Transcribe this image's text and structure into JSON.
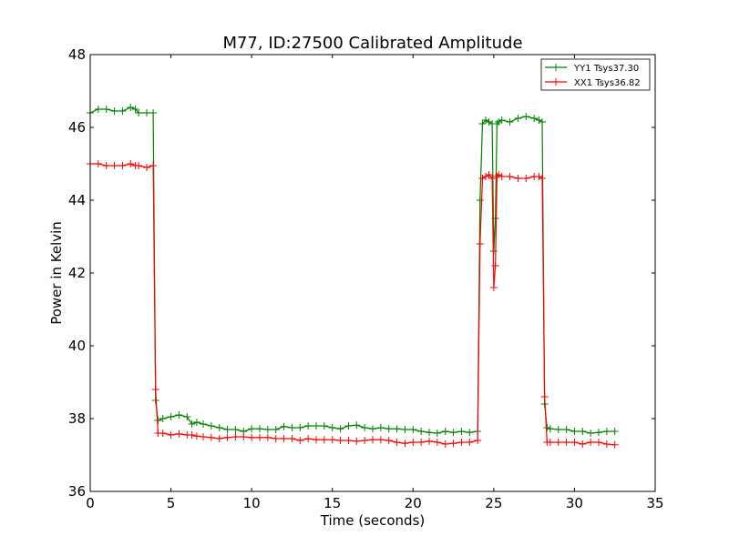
{
  "chart_data": {
    "type": "line",
    "title": "M77, ID:27500 Calibrated Amplitude",
    "xlabel": "Time (seconds)",
    "ylabel": "Power in Kelvin",
    "xlim": [
      0,
      35
    ],
    "ylim": [
      36,
      48
    ],
    "xticks": [
      0,
      5,
      10,
      15,
      20,
      25,
      30,
      35
    ],
    "yticks": [
      36,
      38,
      40,
      42,
      44,
      46,
      48
    ],
    "xtick_labels": [
      "0",
      "5",
      "10",
      "15",
      "20",
      "25",
      "30",
      "35"
    ],
    "ytick_labels": [
      "36",
      "38",
      "40",
      "42",
      "44",
      "46",
      "48"
    ],
    "grid": false,
    "legend_position": "top-right",
    "marker": "+",
    "series": [
      {
        "name": "YY1 Tsys37.30",
        "color": "#008000",
        "x": [
          0.0,
          0.5,
          1.0,
          1.5,
          2.0,
          2.5,
          2.8,
          3.0,
          3.5,
          3.9,
          4.05,
          4.2,
          4.5,
          5.0,
          5.5,
          6.0,
          6.3,
          6.6,
          7.0,
          7.5,
          8.0,
          8.5,
          9.0,
          9.5,
          10.0,
          10.5,
          11.0,
          11.5,
          12.0,
          12.5,
          13.0,
          13.5,
          14.0,
          14.5,
          15.0,
          15.5,
          16.0,
          16.5,
          17.0,
          17.5,
          18.0,
          18.5,
          19.0,
          19.5,
          20.0,
          20.5,
          21.0,
          21.5,
          22.0,
          22.5,
          23.0,
          23.5,
          24.0,
          24.15,
          24.3,
          24.5,
          24.7,
          24.9,
          25.0,
          25.1,
          25.2,
          25.3,
          25.5,
          26.0,
          26.5,
          27.0,
          27.5,
          27.8,
          28.0,
          28.15,
          28.3,
          28.5,
          29.0,
          29.5,
          30.0,
          30.5,
          31.0,
          31.5,
          32.0,
          32.5
        ],
        "values": [
          46.4,
          46.5,
          46.5,
          46.45,
          46.45,
          46.55,
          46.5,
          46.4,
          46.4,
          46.4,
          38.5,
          37.95,
          38.0,
          38.05,
          38.1,
          38.05,
          37.85,
          37.9,
          37.85,
          37.8,
          37.75,
          37.7,
          37.7,
          37.65,
          37.72,
          37.72,
          37.7,
          37.7,
          37.78,
          37.75,
          37.75,
          37.8,
          37.8,
          37.8,
          37.75,
          37.72,
          37.8,
          37.82,
          37.75,
          37.72,
          37.75,
          37.72,
          37.72,
          37.7,
          37.7,
          37.65,
          37.62,
          37.6,
          37.65,
          37.62,
          37.65,
          37.62,
          37.65,
          44.0,
          46.1,
          46.2,
          46.15,
          46.1,
          42.6,
          43.5,
          46.1,
          46.15,
          46.2,
          46.15,
          46.25,
          46.3,
          46.25,
          46.2,
          46.15,
          38.4,
          37.75,
          37.72,
          37.7,
          37.7,
          37.65,
          37.65,
          37.6,
          37.62,
          37.65,
          37.65
        ]
      },
      {
        "name": "XX1 Tsys36.82",
        "color": "#ff0000",
        "x": [
          0.0,
          0.5,
          1.0,
          1.5,
          2.0,
          2.5,
          2.8,
          3.0,
          3.5,
          3.9,
          4.05,
          4.2,
          4.5,
          5.0,
          5.5,
          6.0,
          6.3,
          6.6,
          7.0,
          7.5,
          8.0,
          8.5,
          9.0,
          9.5,
          10.0,
          10.5,
          11.0,
          11.5,
          12.0,
          12.5,
          13.0,
          13.5,
          14.0,
          14.5,
          15.0,
          15.5,
          16.0,
          16.5,
          17.0,
          17.5,
          18.0,
          18.5,
          19.0,
          19.5,
          20.0,
          20.5,
          21.0,
          21.5,
          22.0,
          22.5,
          23.0,
          23.5,
          24.0,
          24.15,
          24.3,
          24.5,
          24.7,
          24.9,
          25.0,
          25.1,
          25.2,
          25.3,
          25.5,
          26.0,
          26.5,
          27.0,
          27.5,
          27.8,
          28.0,
          28.15,
          28.3,
          28.5,
          29.0,
          29.5,
          30.0,
          30.5,
          31.0,
          31.5,
          32.0,
          32.5
        ],
        "values": [
          45.0,
          45.0,
          44.95,
          44.95,
          44.95,
          45.0,
          44.95,
          44.95,
          44.9,
          44.95,
          38.8,
          37.6,
          37.6,
          37.55,
          37.58,
          37.55,
          37.55,
          37.52,
          37.5,
          37.48,
          37.45,
          37.48,
          37.5,
          37.5,
          37.48,
          37.48,
          37.48,
          37.45,
          37.45,
          37.45,
          37.4,
          37.45,
          37.42,
          37.42,
          37.42,
          37.4,
          37.4,
          37.38,
          37.4,
          37.42,
          37.42,
          37.4,
          37.35,
          37.32,
          37.35,
          37.35,
          37.38,
          37.35,
          37.3,
          37.32,
          37.35,
          37.35,
          37.4,
          42.8,
          44.6,
          44.65,
          44.7,
          44.6,
          41.6,
          42.2,
          44.65,
          44.7,
          44.65,
          44.65,
          44.6,
          44.6,
          44.65,
          44.65,
          44.6,
          38.6,
          37.35,
          37.35,
          37.35,
          37.35,
          37.35,
          37.3,
          37.35,
          37.35,
          37.3,
          37.28
        ]
      }
    ]
  }
}
